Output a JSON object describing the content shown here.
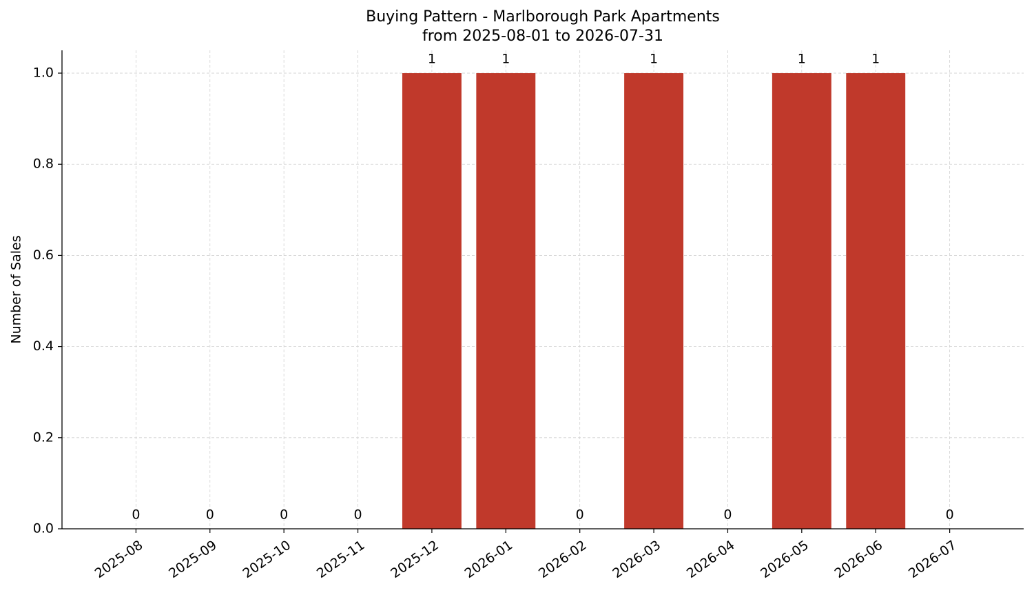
{
  "chart_data": {
    "type": "bar",
    "title": "Buying Pattern - Marlborough Park Apartments",
    "subtitle": "from 2025-08-01 to 2026-07-31",
    "y_label": "Number of Sales",
    "categories": [
      "2025-08",
      "2025-09",
      "2025-10",
      "2025-11",
      "2025-12",
      "2026-01",
      "2026-02",
      "2026-03",
      "2026-04",
      "2026-05",
      "2026-06",
      "2026-07"
    ],
    "values": [
      0,
      0,
      0,
      0,
      1,
      1,
      0,
      1,
      0,
      1,
      1,
      0
    ],
    "color": "#c0392b",
    "ylim": [
      0,
      1.05
    ],
    "yticks": [
      {
        "value": 0,
        "label": "0.0"
      },
      0.2,
      0.4,
      0.6,
      0.8,
      {
        "value": 1,
        "label": "1.0"
      }
    ],
    "grid": true
  }
}
